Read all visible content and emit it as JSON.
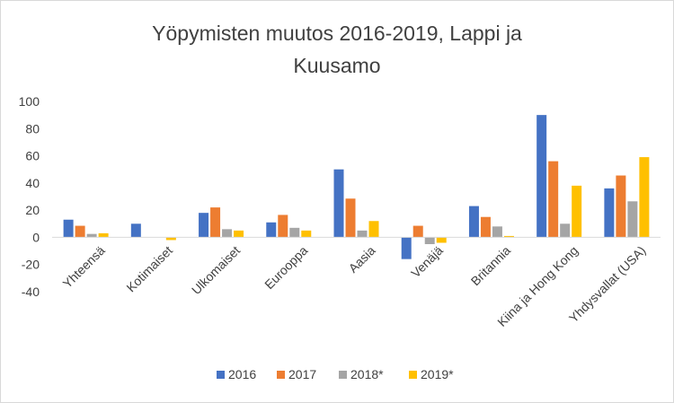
{
  "chart_data": {
    "type": "bar",
    "title_lines": [
      "Yöpymisten muutos 2016-2019, Lappi ja",
      "Kuusamo"
    ],
    "xlabel": "",
    "ylabel": "",
    "ylim": [
      -40,
      100
    ],
    "yticks": [
      -40,
      -20,
      0,
      20,
      40,
      60,
      80,
      100
    ],
    "grid": false,
    "legend_position": "bottom",
    "categories": [
      "Yhteensä",
      "Kotimaiset",
      "Ulkomaiset",
      "Eurooppa",
      "Aasia",
      "Venäjä",
      "Britannia",
      "Kiina ja Hong Kong",
      "Yhdysvallat (USA)"
    ],
    "series": [
      {
        "name": "2016",
        "color": "#4472C4",
        "values": [
          13,
          10,
          18,
          11,
          50,
          -16,
          23,
          90,
          36
        ]
      },
      {
        "name": "2017",
        "color": "#ED7D31",
        "values": [
          8.5,
          0,
          22,
          16.5,
          28.5,
          8.5,
          15,
          56,
          45.5
        ]
      },
      {
        "name": "2018*",
        "color": "#A5A5A5",
        "values": [
          2.5,
          0,
          6,
          7,
          5,
          -5,
          8,
          10,
          26.5
        ]
      },
      {
        "name": "2019*",
        "color": "#FFC000",
        "values": [
          3,
          -2,
          5,
          5,
          12,
          -4,
          1,
          38,
          59
        ]
      }
    ]
  }
}
